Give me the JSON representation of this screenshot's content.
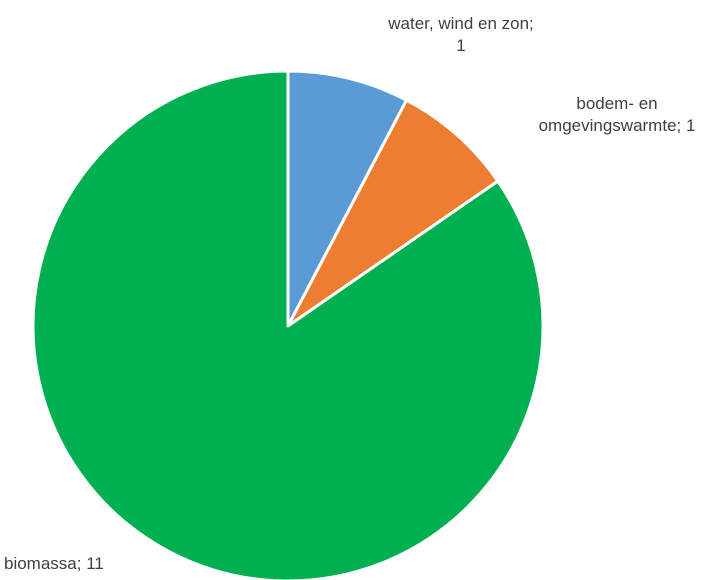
{
  "chart_data": {
    "type": "pie",
    "title": "",
    "slices": [
      {
        "label": "water, wind en zon",
        "value": 1,
        "color": "#5B9BD5"
      },
      {
        "label": "bodem- en omgevingswarmte",
        "value": 1,
        "color": "#ED7D31"
      },
      {
        "label": "biomassa",
        "value": 11,
        "color": "#00B050"
      }
    ],
    "data_labels": [
      {
        "line1": "water, wind en zon;",
        "line2": "1"
      },
      {
        "line1": "bodem- en",
        "line2": "omgevingswarmte; 1"
      },
      {
        "line1": "biomassa; 11",
        "line2": ""
      }
    ],
    "start_angle_deg": 0,
    "direction": "clockwise",
    "slice_border_color": "#ffffff",
    "legend": "none"
  }
}
